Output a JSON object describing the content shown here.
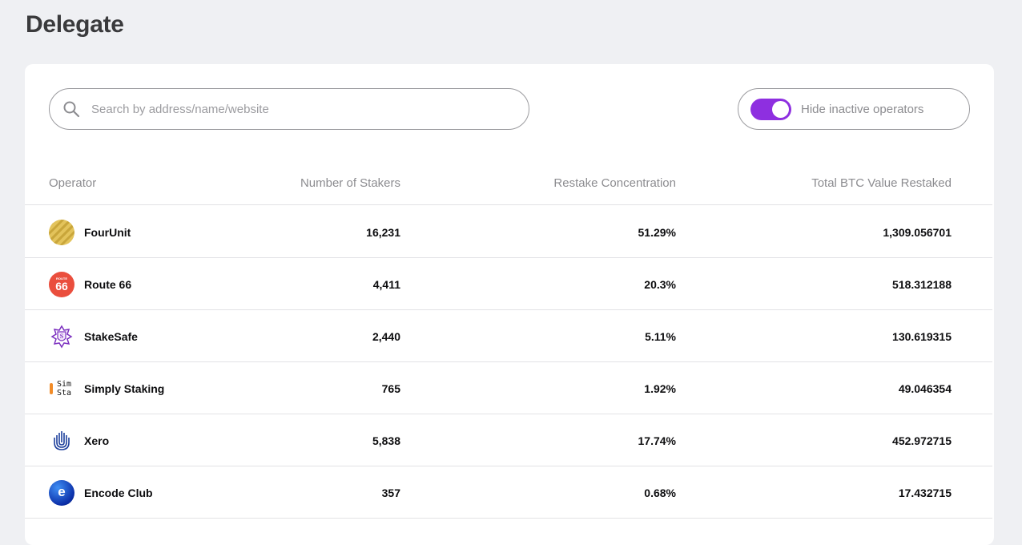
{
  "page": {
    "title": "Delegate"
  },
  "search": {
    "placeholder": "Search by address/name/website",
    "value": ""
  },
  "toggle": {
    "label": "Hide inactive operators",
    "checked": true,
    "color": "#8e2fe0"
  },
  "table": {
    "columns": [
      "Operator",
      "Number of Stakers",
      "Restake Concentration",
      "Total BTC Value Restaked"
    ],
    "rows": [
      {
        "operator": "FourUnit",
        "stakers": "16,231",
        "concentration": "51.29%",
        "btc": "1,309.056701",
        "logo": "fourunit-logo"
      },
      {
        "operator": "Route 66",
        "stakers": "4,411",
        "concentration": "20.3%",
        "btc": "518.312188",
        "logo": "route66-logo",
        "logo_text": "66",
        "logo_small_text": "ROUTE"
      },
      {
        "operator": "StakeSafe",
        "stakers": "2,440",
        "concentration": "5.11%",
        "btc": "130.619315",
        "logo": "stakesafe-logo",
        "logo_text": "S"
      },
      {
        "operator": "Simply Staking",
        "stakers": "765",
        "concentration": "1.92%",
        "btc": "49.046354",
        "logo": "simply-staking-logo",
        "logo_text": "Sim\nSta"
      },
      {
        "operator": "Xero",
        "stakers": "5,838",
        "concentration": "17.74%",
        "btc": "452.972715",
        "logo": "xero-logo"
      },
      {
        "operator": "Encode Club",
        "stakers": "357",
        "concentration": "0.68%",
        "btc": "17.432715",
        "logo": "encode-club-logo",
        "logo_text": "e"
      }
    ]
  }
}
